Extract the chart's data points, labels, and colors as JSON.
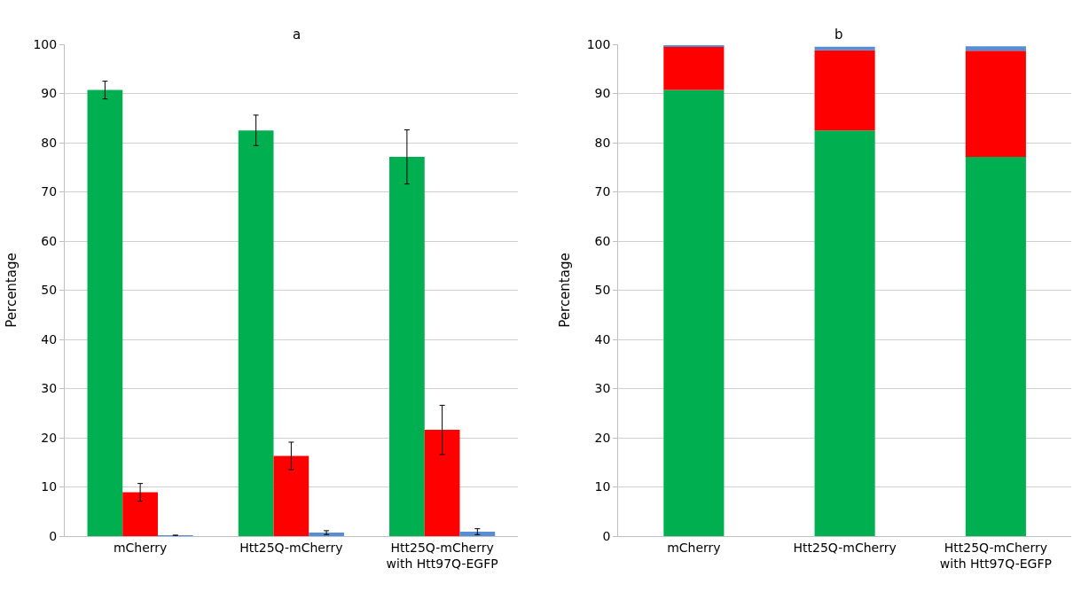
{
  "chart_data": [
    {
      "type": "bar",
      "title": "a",
      "ylabel": "Percentage",
      "categories": [
        "mCherry",
        "Htt25Q-mCherry",
        "Htt25Q-mCherry\nwith Htt97Q-EGFP"
      ],
      "ylim": [
        0,
        100
      ],
      "yticks": [
        0,
        10,
        20,
        30,
        40,
        50,
        60,
        70,
        80,
        90,
        100
      ],
      "grid": "y",
      "series": [
        {
          "color": "#00b050",
          "values": [
            90.7,
            82.5,
            77.1
          ],
          "errors": [
            1.8,
            3.1,
            5.5
          ]
        },
        {
          "color": "#ff0000",
          "values": [
            8.9,
            16.3,
            21.6
          ],
          "errors": [
            1.8,
            2.8,
            5.0
          ]
        },
        {
          "color": "#558ed5",
          "values": [
            0.1,
            0.7,
            0.9
          ],
          "errors": [
            0.1,
            0.4,
            0.6
          ]
        }
      ]
    },
    {
      "type": "bar",
      "title": "b",
      "ylabel": "Percentage",
      "stacked": true,
      "categories": [
        "mCherry",
        "Htt25Q-mCherry",
        "Htt25Q-mCherry\nwith Htt97Q-EGFP"
      ],
      "ylim": [
        0,
        100
      ],
      "yticks": [
        0,
        10,
        20,
        30,
        40,
        50,
        60,
        70,
        80,
        90,
        100
      ],
      "grid": "y",
      "series": [
        {
          "color": "#00b050",
          "values": [
            90.7,
            82.5,
            77.1
          ]
        },
        {
          "color": "#ff0000",
          "values": [
            8.9,
            16.3,
            21.6
          ]
        },
        {
          "color": "#558ed5",
          "values": [
            0.1,
            0.7,
            0.9
          ]
        }
      ]
    }
  ]
}
